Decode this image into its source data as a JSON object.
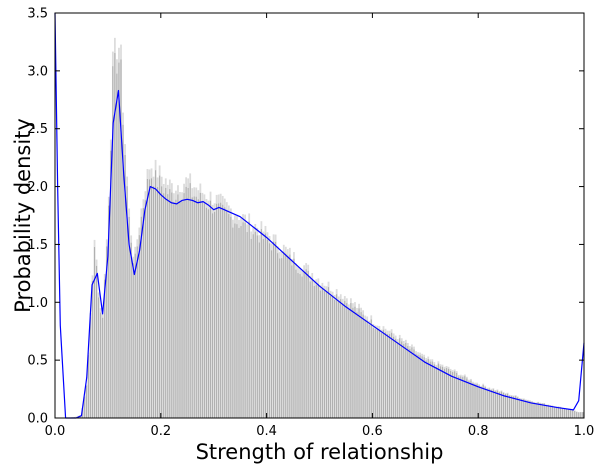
{
  "chart_data": {
    "type": "bar",
    "title": "",
    "xlabel": "Strength of relationship",
    "ylabel": "Probability density",
    "xlim": [
      0.0,
      1.0
    ],
    "ylim": [
      0.0,
      3.5
    ],
    "xticks": [
      "0.0",
      "0.2",
      "0.4",
      "0.6",
      "0.8",
      "1.0"
    ],
    "yticks": [
      "0.0",
      "0.5",
      "1.0",
      "1.5",
      "2.0",
      "2.5",
      "3.0",
      "3.5"
    ],
    "grid": false,
    "legend": "none",
    "colors": {
      "histogram": "#b0b0b0",
      "histogram_light": "#dcdcdc",
      "density_line": "#0000ff",
      "axes": "#000000"
    },
    "series": [
      {
        "kind": "histogram",
        "x": [
          0.0,
          0.02,
          0.04,
          0.05,
          0.06,
          0.07,
          0.075,
          0.08,
          0.085,
          0.09,
          0.1,
          0.11,
          0.12,
          0.125,
          0.13,
          0.14,
          0.15,
          0.16,
          0.17,
          0.18,
          0.2,
          0.22,
          0.25,
          0.28,
          0.3,
          0.35,
          0.4,
          0.45,
          0.5,
          0.55,
          0.6,
          0.65,
          0.7,
          0.75,
          0.8,
          0.85,
          0.9,
          0.95,
          0.98,
          0.99
        ],
        "values": [
          0.0,
          0.0,
          0.01,
          0.03,
          0.3,
          1.1,
          1.6,
          1.3,
          0.95,
          0.9,
          1.7,
          3.1,
          3.25,
          3.1,
          2.6,
          1.8,
          1.35,
          1.7,
          2.0,
          2.2,
          2.1,
          2.0,
          2.05,
          1.95,
          1.9,
          1.75,
          1.6,
          1.4,
          1.2,
          1.05,
          0.85,
          0.7,
          0.52,
          0.42,
          0.3,
          0.22,
          0.15,
          0.1,
          0.07,
          0.05
        ]
      },
      {
        "kind": "line",
        "x": [
          0.0,
          0.005,
          0.01,
          0.02,
          0.03,
          0.04,
          0.05,
          0.06,
          0.07,
          0.08,
          0.09,
          0.1,
          0.11,
          0.12,
          0.13,
          0.14,
          0.15,
          0.16,
          0.17,
          0.18,
          0.19,
          0.2,
          0.21,
          0.22,
          0.23,
          0.24,
          0.25,
          0.26,
          0.27,
          0.28,
          0.29,
          0.3,
          0.31,
          0.32,
          0.33,
          0.35,
          0.4,
          0.45,
          0.5,
          0.55,
          0.6,
          0.65,
          0.7,
          0.75,
          0.8,
          0.85,
          0.9,
          0.95,
          0.98,
          0.99,
          1.0
        ],
        "values": [
          3.5,
          2.0,
          0.8,
          0.0,
          0.0,
          0.0,
          0.02,
          0.35,
          1.15,
          1.25,
          0.9,
          1.4,
          2.55,
          2.83,
          2.1,
          1.5,
          1.24,
          1.45,
          1.8,
          2.0,
          1.98,
          1.93,
          1.89,
          1.86,
          1.85,
          1.88,
          1.89,
          1.88,
          1.86,
          1.87,
          1.84,
          1.8,
          1.82,
          1.8,
          1.78,
          1.74,
          1.56,
          1.35,
          1.14,
          0.96,
          0.8,
          0.64,
          0.48,
          0.36,
          0.27,
          0.19,
          0.13,
          0.09,
          0.07,
          0.15,
          0.65
        ]
      }
    ]
  }
}
